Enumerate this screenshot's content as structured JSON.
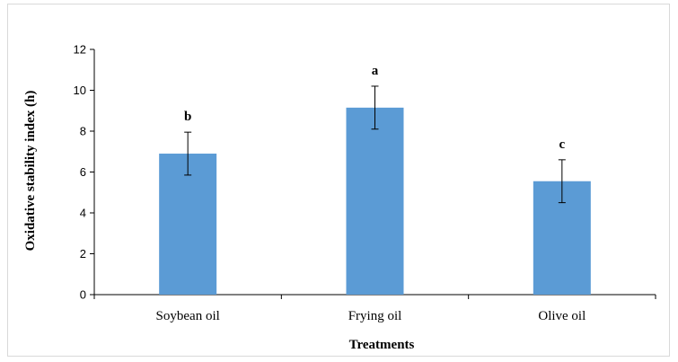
{
  "chart_data": {
    "type": "bar",
    "categories": [
      "Soybean oil",
      "Frying oil",
      "Olive oil"
    ],
    "values": [
      6.9,
      9.15,
      5.55
    ],
    "errors": [
      1.05,
      1.05,
      1.05
    ],
    "significance": [
      "b",
      "a",
      "c"
    ],
    "xlabel": "Treatments",
    "ylabel": "Oxidative stability index (h)",
    "ylim": [
      0,
      12
    ],
    "yticks": [
      0,
      2,
      4,
      6,
      8,
      10,
      12
    ],
    "bar_color": "#5b9bd5",
    "grid": false,
    "legend": "none"
  }
}
